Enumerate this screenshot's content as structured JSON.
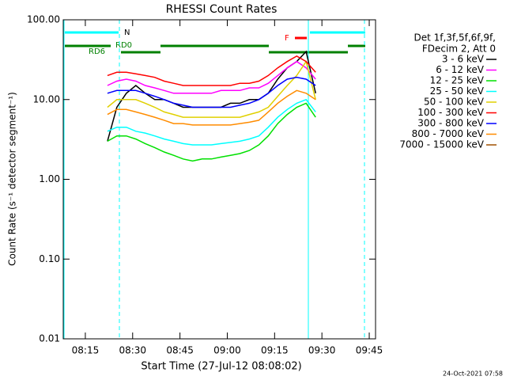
{
  "chart_data": {
    "type": "line",
    "title": "RHESSI Count Rates",
    "xlabel": "Start Time (27-Jul-12 08:08:02)",
    "ylabel": "Count Rate (s⁻¹ detector segment⁻¹)",
    "legend_title": [
      "Det 1f,3f,5f,6f,9f,",
      "FDecim 2, Att 0"
    ],
    "legend": "right",
    "log_y": true,
    "xlim": [
      "08:08",
      "09:47"
    ],
    "xticks": [
      "08:15",
      "08:30",
      "08:45",
      "09:00",
      "09:15",
      "09:30",
      "09:45"
    ],
    "ylim": [
      0.01,
      100
    ],
    "yticks": [
      {
        "value": 0.01,
        "label": "0.01"
      },
      {
        "value": 0.1,
        "label": "0.10"
      },
      {
        "value": 1,
        "label": "1.00"
      },
      {
        "value": 10,
        "label": "10.00"
      },
      {
        "value": 100,
        "label": "100.00"
      }
    ],
    "annotations": [
      "N",
      "RD0",
      "RD6",
      "F"
    ],
    "timestamp": "24-Oct-2021 07:58",
    "x": [
      "08:22",
      "08:25",
      "08:28",
      "08:31",
      "08:34",
      "08:37",
      "08:40",
      "08:43",
      "08:46",
      "08:49",
      "08:52",
      "08:55",
      "08:58",
      "09:01",
      "09:04",
      "09:07",
      "09:10",
      "09:13",
      "09:16",
      "09:19",
      "09:22",
      "09:25",
      "09:28"
    ],
    "series": [
      {
        "name": "3 - 6 keV",
        "color": "#000000",
        "values": [
          3,
          8,
          12,
          15,
          12,
          10,
          10,
          9,
          8,
          8,
          8,
          8,
          8,
          9,
          9,
          10,
          10,
          12,
          18,
          25,
          30,
          40,
          12
        ]
      },
      {
        "name": "6 - 12 keV",
        "color": "#ff00ff",
        "values": [
          15,
          17,
          18,
          17,
          15,
          14,
          13,
          12,
          12,
          12,
          12,
          12,
          13,
          13,
          13,
          14,
          14,
          16,
          20,
          25,
          30,
          25,
          18
        ]
      },
      {
        "name": "12 - 25 keV",
        "color": "#00e000",
        "values": [
          3,
          3.5,
          3.5,
          3.2,
          2.8,
          2.5,
          2.2,
          2,
          1.8,
          1.7,
          1.8,
          1.8,
          1.9,
          2,
          2.1,
          2.3,
          2.7,
          3.5,
          5,
          6.5,
          8,
          9,
          6
        ]
      },
      {
        "name": "25 - 50 keV",
        "color": "#00ffff",
        "values": [
          4,
          4.5,
          4.5,
          4,
          3.8,
          3.5,
          3.2,
          3,
          2.8,
          2.7,
          2.7,
          2.7,
          2.8,
          2.9,
          3,
          3.2,
          3.5,
          4.5,
          6,
          7.5,
          9,
          10,
          7
        ]
      },
      {
        "name": "50 - 100 keV",
        "color": "#e0d000",
        "values": [
          8,
          10,
          10,
          10,
          9,
          8,
          7,
          6.5,
          6,
          6,
          6,
          6,
          6,
          6,
          6,
          6.5,
          7,
          8,
          11,
          15,
          20,
          30,
          10
        ]
      },
      {
        "name": "100 - 300 keV",
        "color": "#ff0000",
        "values": [
          20,
          22,
          22,
          21,
          20,
          19,
          17,
          16,
          15,
          15,
          15,
          15,
          15,
          15,
          16,
          16,
          17,
          20,
          25,
          30,
          35,
          30,
          22
        ]
      },
      {
        "name": "300 - 800 keV",
        "color": "#0000ff",
        "values": [
          12,
          13,
          13,
          13,
          12,
          11,
          10,
          9,
          8.5,
          8,
          8,
          8,
          8,
          8,
          8.5,
          9,
          10,
          12,
          15,
          18,
          19,
          18,
          15
        ]
      },
      {
        "name": "800 - 7000 keV",
        "color": "#ff8c00",
        "values": [
          6.5,
          7.5,
          7.5,
          7,
          6.5,
          6,
          5.5,
          5,
          5,
          4.8,
          4.8,
          4.8,
          4.8,
          4.8,
          5,
          5.2,
          5.5,
          7,
          9,
          11,
          13,
          12,
          10
        ]
      },
      {
        "name": "7000 - 15000 keV",
        "color": "#a05000",
        "values": [
          null,
          null,
          null,
          null,
          null,
          null,
          null,
          null,
          null,
          null,
          null,
          null,
          null,
          null,
          null,
          null,
          null,
          null,
          null,
          null,
          null,
          null,
          null
        ]
      }
    ]
  }
}
